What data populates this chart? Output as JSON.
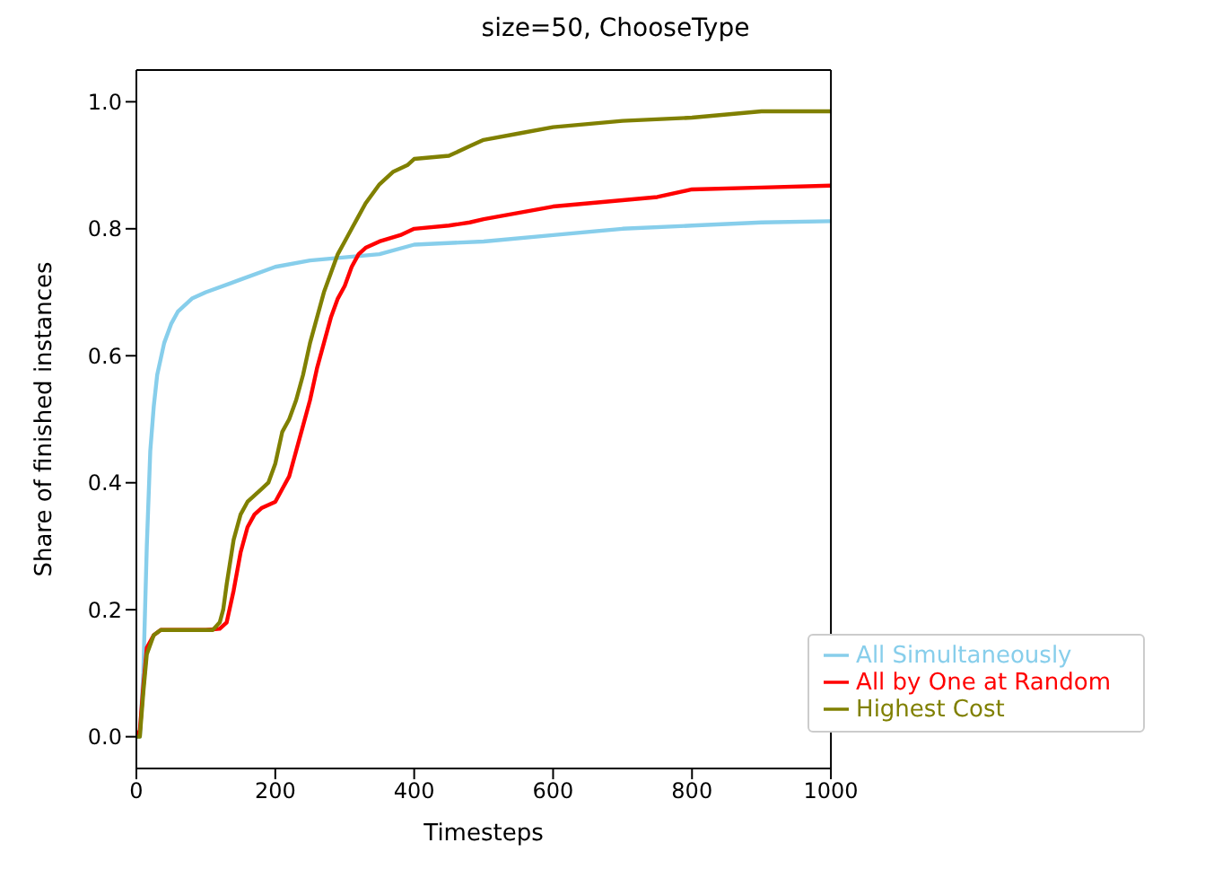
{
  "chart_data": {
    "type": "line",
    "title": "size=50, ChooseType",
    "xlabel": "Timesteps",
    "ylabel": "Share of finished instances",
    "xlim": [
      0,
      1000
    ],
    "xticks": [
      0,
      200,
      400,
      600,
      800,
      1000
    ],
    "ylim": [
      -0.05,
      1.05
    ],
    "yticks": [
      {
        "value": 0,
        "label": "0.0"
      },
      {
        "value": 0.2,
        "label": "0.2"
      },
      {
        "value": 0.4,
        "label": "0.4"
      },
      {
        "value": 0.6,
        "label": "0.6"
      },
      {
        "value": 0.8,
        "label": "0.8"
      },
      {
        "value": 1,
        "label": "1.0"
      }
    ],
    "grid": false,
    "legend": "bottom right",
    "marker": "none",
    "line_style": "solid",
    "series": [
      {
        "name": "All Simultaneously",
        "color": "#87ceeb",
        "x": [
          0,
          5,
          10,
          15,
          20,
          25,
          30,
          40,
          50,
          60,
          80,
          100,
          150,
          200,
          250,
          300,
          350,
          400,
          500,
          600,
          700,
          800,
          900,
          1000
        ],
        "values": [
          0,
          0,
          0.1,
          0.3,
          0.45,
          0.52,
          0.57,
          0.62,
          0.65,
          0.67,
          0.69,
          0.7,
          0.72,
          0.74,
          0.75,
          0.755,
          0.76,
          0.775,
          0.78,
          0.79,
          0.8,
          0.805,
          0.81,
          0.812
        ]
      },
      {
        "name": "All by One at Random",
        "color": "#ff0000",
        "x": [
          0,
          5,
          10,
          15,
          25,
          35,
          100,
          120,
          130,
          140,
          150,
          160,
          170,
          180,
          200,
          210,
          220,
          230,
          240,
          250,
          260,
          270,
          280,
          290,
          300,
          310,
          320,
          330,
          350,
          380,
          400,
          450,
          480,
          500,
          550,
          600,
          650,
          700,
          750,
          800,
          900,
          1000
        ],
        "values": [
          0,
          0.01,
          0.08,
          0.14,
          0.16,
          0.168,
          0.168,
          0.17,
          0.18,
          0.23,
          0.29,
          0.33,
          0.35,
          0.36,
          0.37,
          0.39,
          0.41,
          0.45,
          0.49,
          0.53,
          0.58,
          0.62,
          0.66,
          0.69,
          0.71,
          0.74,
          0.76,
          0.77,
          0.78,
          0.79,
          0.8,
          0.805,
          0.81,
          0.815,
          0.825,
          0.835,
          0.84,
          0.845,
          0.85,
          0.862,
          0.865,
          0.868
        ]
      },
      {
        "name": "Highest Cost",
        "color": "#808000",
        "x": [
          0,
          5,
          10,
          15,
          25,
          35,
          110,
          120,
          125,
          130,
          140,
          150,
          160,
          170,
          180,
          190,
          200,
          210,
          220,
          230,
          240,
          250,
          260,
          270,
          280,
          290,
          300,
          310,
          320,
          330,
          350,
          370,
          390,
          400,
          450,
          480,
          500,
          550,
          600,
          650,
          700,
          800,
          850,
          900,
          1000
        ],
        "values": [
          0,
          0,
          0.07,
          0.13,
          0.16,
          0.168,
          0.168,
          0.18,
          0.2,
          0.24,
          0.31,
          0.35,
          0.37,
          0.38,
          0.39,
          0.4,
          0.43,
          0.48,
          0.5,
          0.53,
          0.57,
          0.62,
          0.66,
          0.7,
          0.73,
          0.76,
          0.78,
          0.8,
          0.82,
          0.84,
          0.87,
          0.89,
          0.9,
          0.91,
          0.915,
          0.93,
          0.94,
          0.95,
          0.96,
          0.965,
          0.97,
          0.975,
          0.98,
          0.985,
          0.985
        ]
      }
    ]
  }
}
